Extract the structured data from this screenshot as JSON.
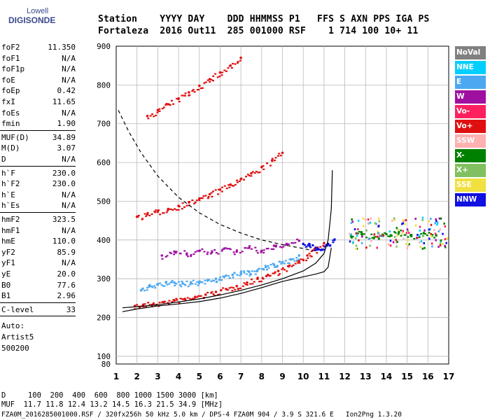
{
  "logo": {
    "line1": "Lowell",
    "line2": "DIGISONDE"
  },
  "header": {
    "labels": "Station    YYYY DAY    DDD HHMMSS P1   FFS S AXN PPS IGA PS",
    "values": "Fortaleza  2016 Out11  285 001000 RSF    1 714 100 10+ 11"
  },
  "params": {
    "group1": [
      {
        "k": "foF2",
        "v": "11.350"
      },
      {
        "k": "foF1",
        "v": "N/A"
      },
      {
        "k": "foF1p",
        "v": "N/A"
      },
      {
        "k": "foE",
        "v": "N/A"
      },
      {
        "k": "foEp",
        "v": "0.42"
      },
      {
        "k": "fxI",
        "v": "11.65"
      },
      {
        "k": "foEs",
        "v": "N/A"
      },
      {
        "k": "fmin",
        "v": "1.90"
      }
    ],
    "group2": [
      {
        "k": "MUF(D)",
        "v": "34.89"
      },
      {
        "k": "M(D)",
        "v": "3.07"
      },
      {
        "k": "D",
        "v": "N/A"
      }
    ],
    "group3": [
      {
        "k": "h`F",
        "v": "230.0"
      },
      {
        "k": "h`F2",
        "v": "230.0"
      },
      {
        "k": "h`E",
        "v": "N/A"
      },
      {
        "k": "h`Es",
        "v": "N/A"
      }
    ],
    "group4": [
      {
        "k": "hmF2",
        "v": "323.5"
      },
      {
        "k": "hmF1",
        "v": "N/A"
      },
      {
        "k": "hmE",
        "v": "110.0"
      },
      {
        "k": "yF2",
        "v": "85.9"
      },
      {
        "k": "yF1",
        "v": "N/A"
      },
      {
        "k": "yE",
        "v": "20.0"
      },
      {
        "k": "B0",
        "v": "77.6"
      },
      {
        "k": "B1",
        "v": "2.96"
      }
    ],
    "clevel": {
      "k": "C-level",
      "v": "33"
    },
    "auto": [
      "Auto:",
      "Artist5",
      "500200"
    ]
  },
  "legend": [
    {
      "label": "NoVal",
      "color": "#808080"
    },
    {
      "label": "NNE",
      "color": "#00cfff"
    },
    {
      "label": "E",
      "color": "#4ca8f0"
    },
    {
      "label": "W",
      "color": "#a010a0"
    },
    {
      "label": "Vo-",
      "color": "#ff2060"
    },
    {
      "label": "Vo+",
      "color": "#e01010"
    },
    {
      "label": "SSW",
      "color": "#ffb0b0"
    },
    {
      "label": "X-",
      "color": "#008000"
    },
    {
      "label": "X+",
      "color": "#80c060"
    },
    {
      "label": "SSE",
      "color": "#f0e040"
    },
    {
      "label": "NNW",
      "color": "#1010e0"
    }
  ],
  "bottom": {
    "line1": "D     100  200  400  600  800 1000 1500 3000 [km]",
    "line2": "MUF  11.7 11.8 12.4 13.2 14.5 16.3 21.5 34.9 [MHz]",
    "line3": "FZA0M_2016285001000.RSF / 320fx256h 50 kHz 5.0 km / DPS-4 FZA0M 904 / 3.9 S 321.6 E   Ion2Png 1.3.20"
  },
  "chart_data": {
    "type": "scatter",
    "title": "",
    "xlabel": "",
    "ylabel": "",
    "xlim": [
      1,
      17
    ],
    "ylim": [
      80,
      900
    ],
    "x_ticks": [
      1,
      2,
      3,
      4,
      5,
      6,
      7,
      8,
      9,
      10,
      11,
      12,
      13,
      14,
      15,
      16,
      17
    ],
    "y_ticks": [
      100,
      200,
      300,
      400,
      500,
      600,
      700,
      800,
      900
    ],
    "y_bottom_label": 80,
    "grid": true,
    "legend_position": "right",
    "series": [
      {
        "name": "Vo+",
        "color": "#e01010",
        "x": [
          1.9,
          2.3,
          2.8,
          3.3,
          3.8,
          4.3,
          4.8,
          5.3,
          5.8,
          6.3,
          6.8,
          7.3,
          7.8,
          8.3,
          8.8,
          9.3,
          9.8,
          10.2,
          10.6,
          11.0
        ],
        "y": [
          230,
          233,
          236,
          240,
          244,
          248,
          253,
          259,
          266,
          273,
          281,
          290,
          300,
          310,
          320,
          332,
          346,
          360,
          375,
          392
        ]
      },
      {
        "name": "Vo+",
        "color": "#e01010",
        "x": [
          2.0,
          2.5,
          3.0,
          3.5,
          4.0,
          4.5,
          5.0,
          5.5,
          6.0,
          6.5,
          7.0,
          7.5,
          8.0,
          8.5,
          9.0
        ],
        "y": [
          460,
          466,
          473,
          480,
          488,
          497,
          507,
          518,
          530,
          543,
          557,
          572,
          588,
          605,
          625
        ]
      },
      {
        "name": "Vo+",
        "color": "#e01010",
        "x": [
          2.5,
          3.0,
          3.5,
          4.0,
          4.5,
          5.0,
          5.5,
          6.0,
          6.5,
          7.0
        ],
        "y": [
          720,
          735,
          750,
          765,
          781,
          798,
          815,
          832,
          850,
          870
        ]
      },
      {
        "name": "E",
        "color": "#4ca8f0",
        "x": [
          2.2,
          2.6,
          3.0,
          3.4,
          3.8,
          4.2,
          4.6,
          5.0,
          5.4,
          5.8,
          6.2,
          6.6,
          7.0,
          7.4,
          7.8,
          8.2,
          8.6,
          9.0,
          9.4,
          9.8
        ],
        "y": [
          270,
          280,
          285,
          290,
          290,
          288,
          290,
          292,
          296,
          300,
          305,
          310,
          315,
          318,
          322,
          330,
          336,
          342,
          350,
          360
        ]
      },
      {
        "name": "W",
        "color": "#a010a0",
        "x": [
          3.2,
          3.8,
          4.4,
          5.0,
          5.6,
          6.2,
          6.8,
          7.4,
          8.0,
          8.6,
          9.2,
          9.8
        ],
        "y": [
          360,
          370,
          365,
          372,
          368,
          378,
          370,
          380,
          372,
          385,
          390,
          398
        ]
      },
      {
        "name": "NNW",
        "color": "#1010e0",
        "x": [
          10.0,
          10.3,
          10.6,
          10.9,
          11.2,
          11.5
        ],
        "y": [
          390,
          385,
          380,
          375,
          390,
          400
        ]
      },
      {
        "name": "X-",
        "color": "#008000",
        "x": [
          12.3,
          12.8,
          13.4,
          14.0,
          14.6,
          15.2,
          15.8,
          16.4
        ],
        "y": [
          410,
          420,
          405,
          415,
          420,
          410,
          418,
          412
        ]
      }
    ],
    "profile_solid": {
      "x": [
        1.3,
        2.0,
        3.0,
        4.0,
        5.0,
        6.0,
        7.0,
        8.0,
        9.0,
        10.0,
        10.6,
        11.0,
        11.2,
        11.35
      ],
      "y": [
        215,
        222,
        230,
        235,
        241,
        250,
        262,
        277,
        293,
        305,
        312,
        318,
        330,
        380
      ]
    },
    "profile_fit": {
      "x": [
        1.3,
        2.0,
        3.0,
        4.0,
        5.0,
        6.0,
        7.0,
        8.0,
        9.0,
        10.0,
        10.6,
        11.0,
        11.2,
        11.35,
        11.4
      ],
      "y": [
        225,
        228,
        233,
        240,
        248,
        258,
        270,
        284,
        300,
        320,
        340,
        365,
        400,
        480,
        580
      ]
    },
    "dashed_curve": {
      "x": [
        1.1,
        1.6,
        2.2,
        3.0,
        4.0,
        5.0,
        6.0,
        7.0,
        8.0,
        9.0,
        10.0,
        10.5
      ],
      "y": [
        735,
        680,
        625,
        565,
        510,
        470,
        440,
        418,
        400,
        388,
        378,
        372
      ]
    }
  }
}
